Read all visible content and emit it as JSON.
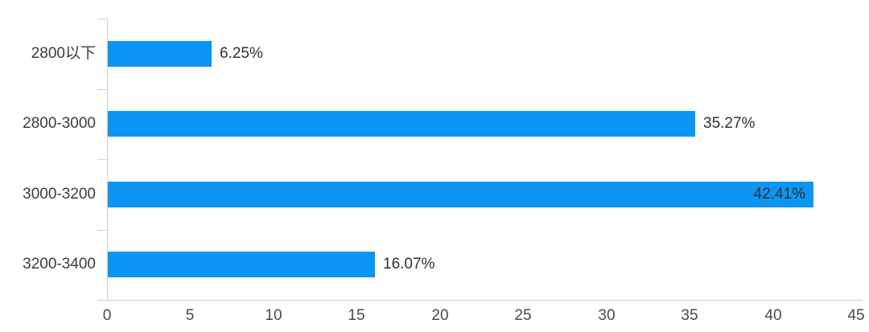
{
  "chart_data": {
    "type": "bar",
    "orientation": "horizontal",
    "title": "",
    "xlabel": "",
    "ylabel": "",
    "categories": [
      "2800以下",
      "2800-3000",
      "3000-3200",
      "3200-3400"
    ],
    "values": [
      6.25,
      35.27,
      42.41,
      16.07
    ],
    "value_labels": [
      "6.25%",
      "35.27%",
      "42.41%",
      "16.07%"
    ],
    "value_label_position": [
      "outside",
      "outside",
      "inside",
      "outside"
    ],
    "x_ticks": [
      0,
      5,
      10,
      15,
      20,
      25,
      30,
      35,
      40,
      45
    ],
    "xlim": [
      0,
      45
    ],
    "grid": false,
    "legend": false,
    "colors": {
      "bar": "#0c95f5",
      "axis": "#cfcfcf",
      "category_text": "#3c3c3c",
      "value_text": "#303030",
      "tick_text": "#4a4a4a",
      "background": "#ffffff"
    }
  }
}
